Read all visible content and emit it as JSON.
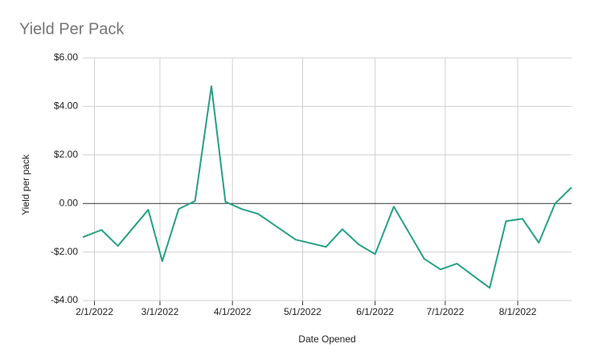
{
  "chart_data": {
    "type": "line",
    "title": "Yield Per Pack",
    "x_label": "Date Opened",
    "y_label": "Yield per pack",
    "x": [
      "2022-01-27",
      "2022-02-04",
      "2022-02-11",
      "2022-02-24",
      "2022-03-02",
      "2022-03-09",
      "2022-03-16",
      "2022-03-23",
      "2022-03-29",
      "2022-04-05",
      "2022-04-12",
      "2022-04-28",
      "2022-05-11",
      "2022-05-18",
      "2022-05-25",
      "2022-06-01",
      "2022-06-09",
      "2022-06-22",
      "2022-06-29",
      "2022-07-06",
      "2022-07-20",
      "2022-07-27",
      "2022-08-03",
      "2022-08-10",
      "2022-08-17",
      "2022-08-24"
    ],
    "values": [
      -1.39,
      -1.09,
      -1.75,
      -0.26,
      -2.38,
      -0.23,
      0.1,
      4.83,
      0.07,
      -0.23,
      -0.43,
      -1.49,
      -1.79,
      -1.06,
      -1.69,
      -2.09,
      -0.13,
      -2.28,
      -2.72,
      -2.48,
      -3.48,
      -0.73,
      -0.63,
      -1.62,
      0.0,
      0.66
    ],
    "color": "#26a085",
    "xlim": [
      "2022-01-27",
      "2022-08-24"
    ],
    "xticks": [
      {
        "value": "2022-02-01",
        "label": "2/1/2022"
      },
      {
        "value": "2022-03-01",
        "label": "3/1/2022"
      },
      {
        "value": "2022-04-01",
        "label": "4/1/2022"
      },
      {
        "value": "2022-05-01",
        "label": "5/1/2022"
      },
      {
        "value": "2022-06-01",
        "label": "6/1/2022"
      },
      {
        "value": "2022-07-01",
        "label": "7/1/2022"
      },
      {
        "value": "2022-08-01",
        "label": "8/1/2022"
      }
    ],
    "ylim": [
      -4,
      6
    ],
    "yticks": [
      {
        "value": -4,
        "label": "-$4.00"
      },
      {
        "value": -2,
        "label": "-$2.00"
      },
      {
        "value": 0,
        "label": "0.00"
      },
      {
        "value": 2,
        "label": "$2.00"
      },
      {
        "value": 4,
        "label": "$4.00"
      },
      {
        "value": 6,
        "label": "$6.00"
      }
    ],
    "grid": true
  }
}
